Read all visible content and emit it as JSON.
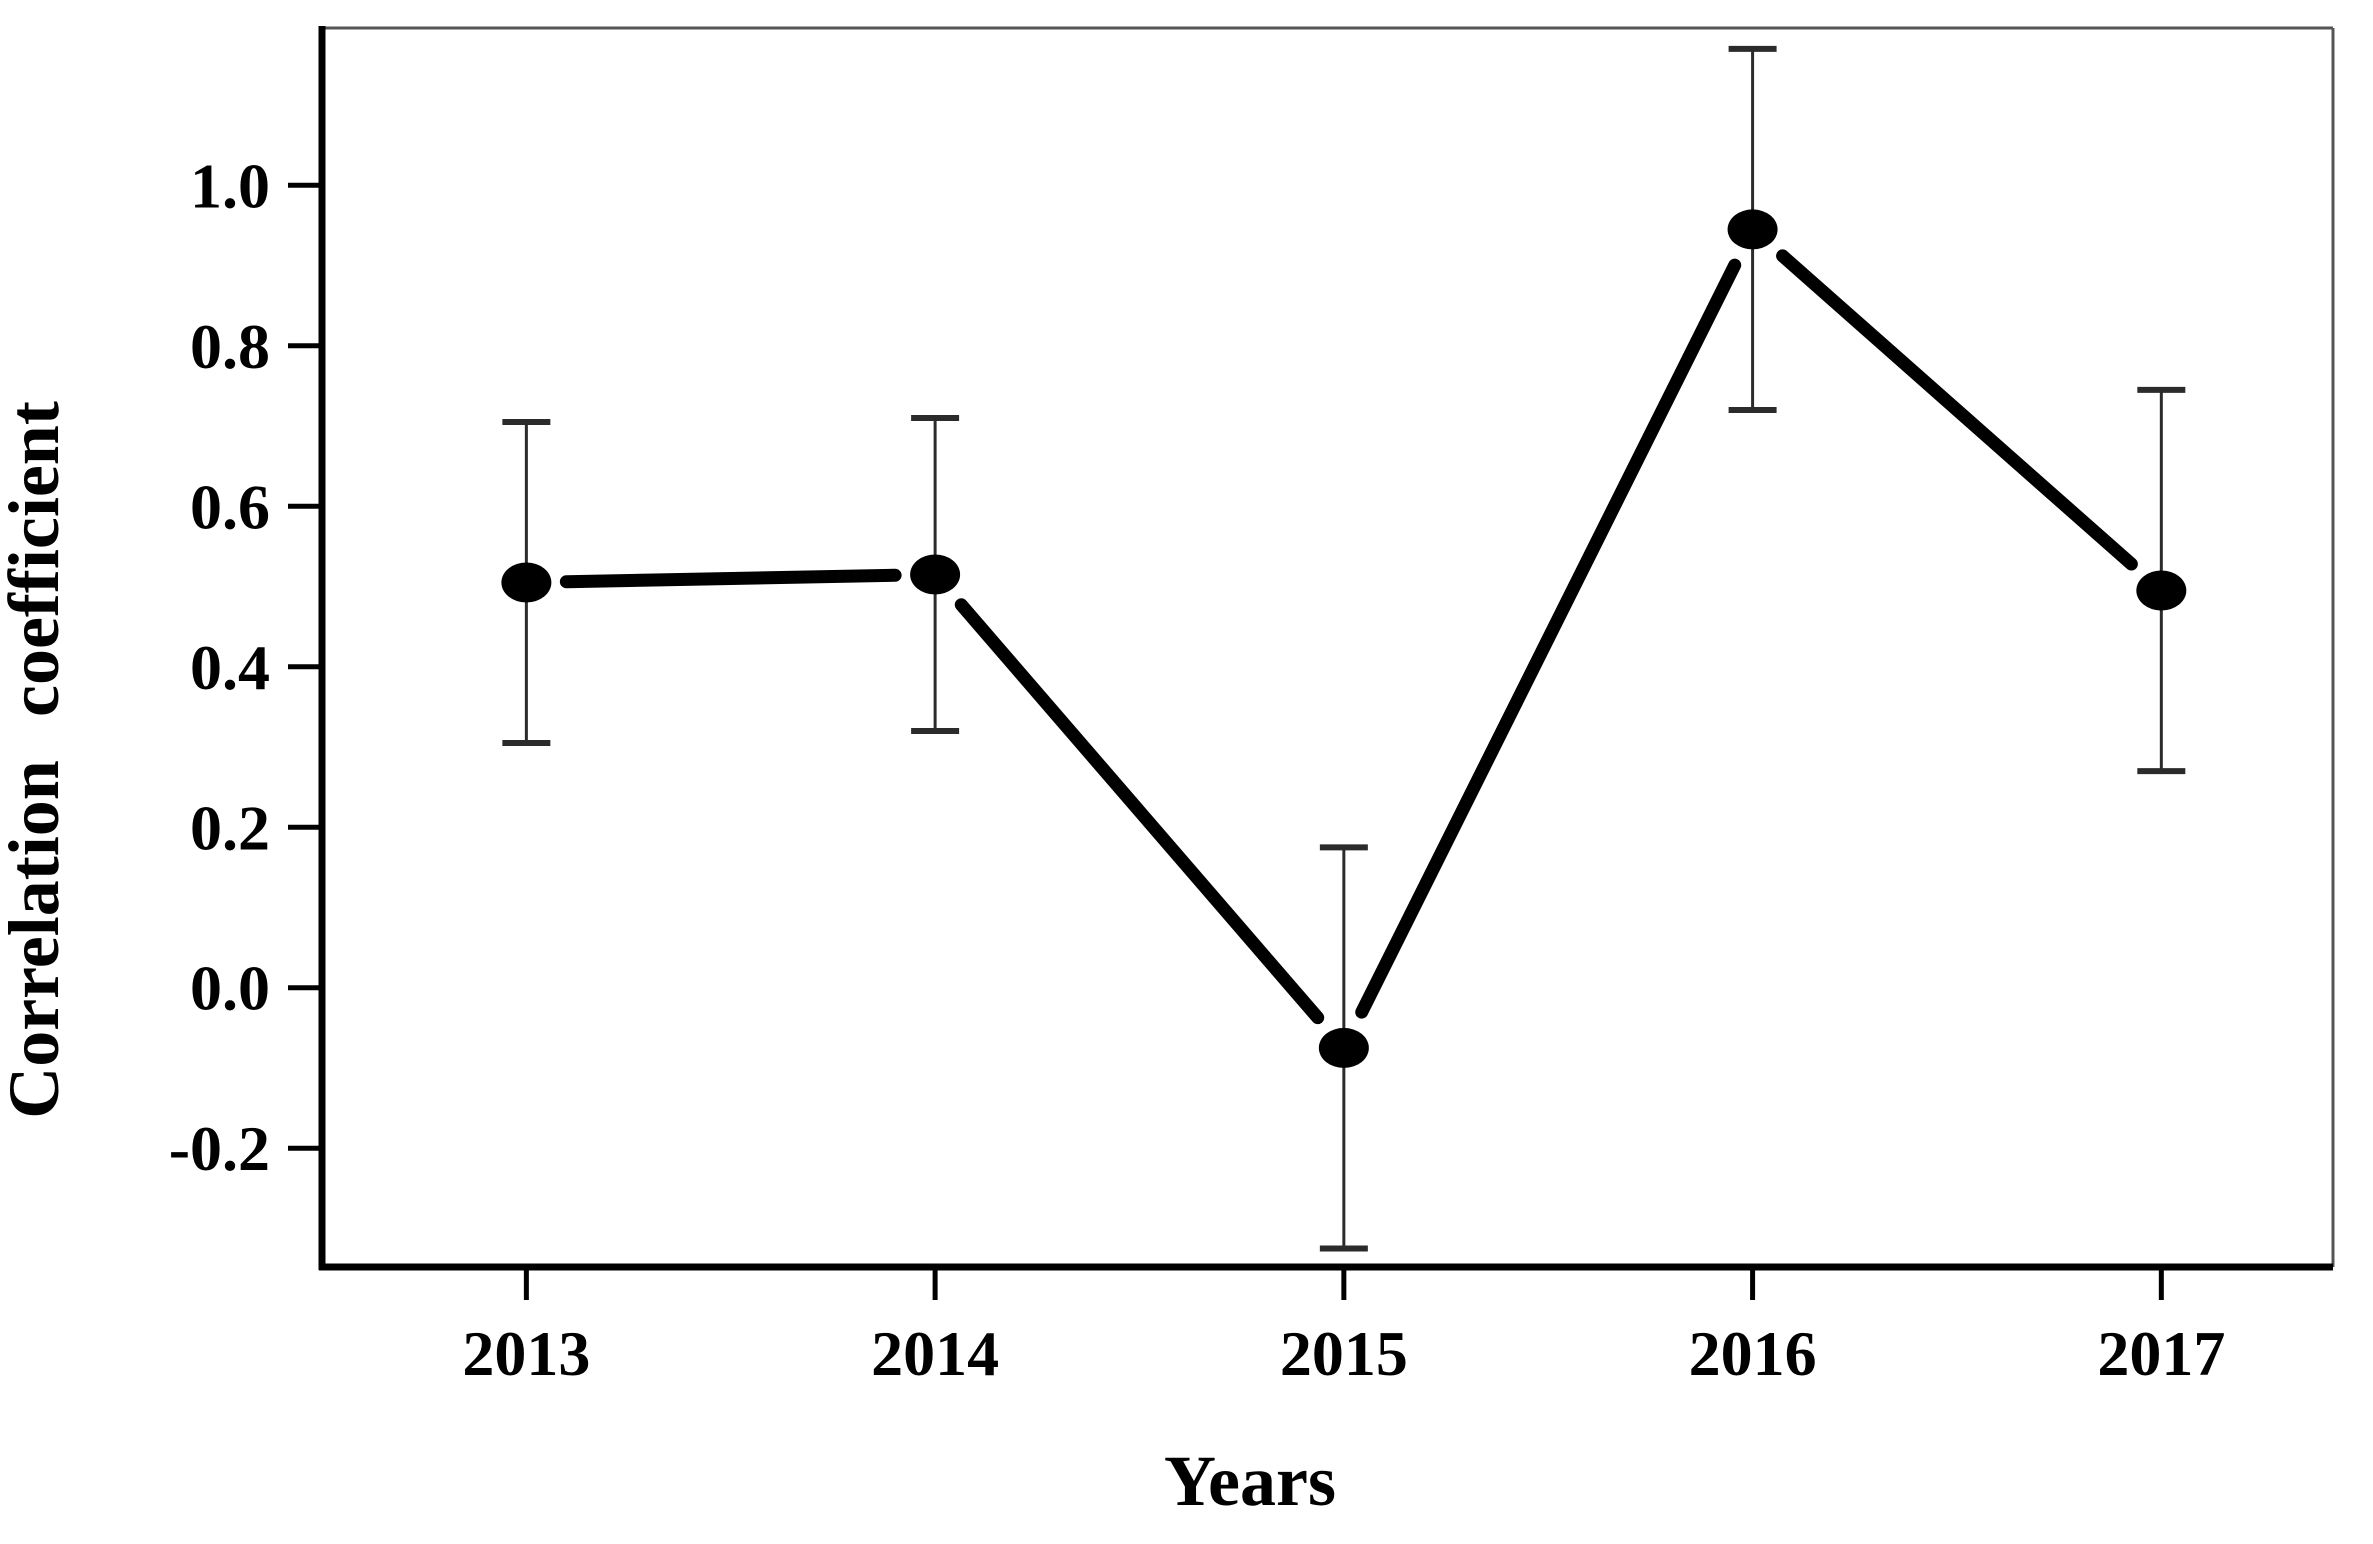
{
  "chart_data": {
    "type": "line",
    "title": "",
    "xlabel": "Years",
    "ylabel": "Correlation coefficient",
    "x": [
      2013,
      2014,
      2015,
      2016,
      2017
    ],
    "x_tick_labels": [
      "2013",
      "2014",
      "2015",
      "2016",
      "2017"
    ],
    "series": [
      {
        "name": "Correlation coefficient",
        "values": [
          0.505,
          0.515,
          -0.075,
          0.945,
          0.495
        ],
        "error_upper": [
          0.705,
          0.71,
          0.175,
          1.17,
          0.745
        ],
        "error_lower": [
          0.305,
          0.32,
          -0.325,
          0.72,
          0.27
        ]
      }
    ],
    "y_ticks": [
      1.0,
      0.8,
      0.6,
      0.4,
      0.2,
      0.0,
      -0.2
    ],
    "y_tick_labels": [
      "1.0",
      "0.8",
      "0.6",
      "0.4",
      "0.2",
      "0.0",
      "-0.2"
    ],
    "xlim": [
      2012.5,
      2017.42
    ],
    "ylim": [
      -0.348,
      1.196
    ],
    "grid": false,
    "legend": false,
    "marker": "filled-ellipse",
    "colors": {
      "line": "#000000",
      "marker": "#000000",
      "error_bar": "#2b2b2b",
      "axis": "#000000",
      "frame": "#555555",
      "background": "#ffffff",
      "text": "#000000"
    }
  }
}
